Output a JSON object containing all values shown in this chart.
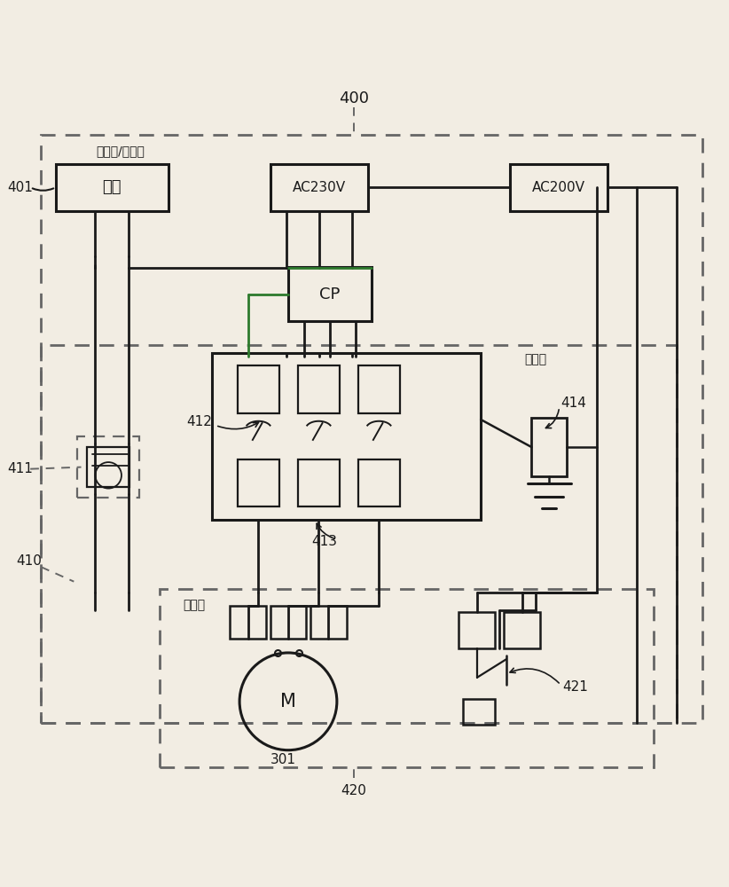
{
  "bg_color": "#f2ede3",
  "line_color": "#1a1a1a",
  "green_color": "#2d7a2d",
  "dashed_color": "#666666",
  "label_400": "400",
  "label_401": "401",
  "label_410": "410",
  "label_411": "411",
  "label_412": "412",
  "label_413": "413",
  "label_414": "414",
  "label_301": "301",
  "label_420": "420",
  "label_421": "421",
  "text_controller": "控制器/电源部",
  "text_jiban": "基板",
  "text_ac230v": "AC230V",
  "text_ac200v": "AC200V",
  "text_cp": "CP",
  "text_control_box": "控制箱",
  "text_pump_unit": "泵单元",
  "text_M": "M"
}
